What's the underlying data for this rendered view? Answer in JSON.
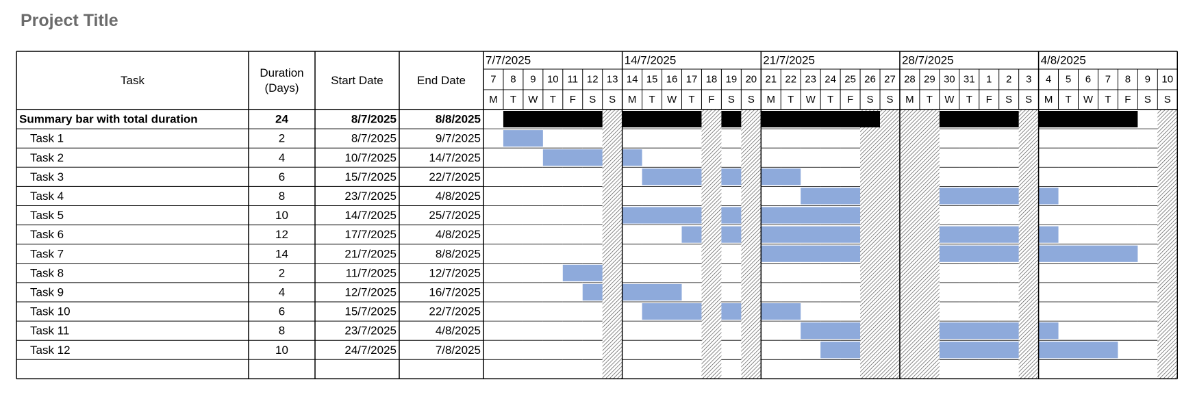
{
  "page": {
    "title": "Project Title"
  },
  "headers": {
    "task": "Task",
    "duration_line1": "Duration",
    "duration_line2": "(Days)",
    "start": "Start Date",
    "end": "End Date"
  },
  "colors": {
    "bar": "#8eaadb",
    "summary": "#000000",
    "grid": "#000000",
    "hatch": "#555555",
    "title": "#6b6b6b"
  },
  "chart_data": {
    "type": "gantt",
    "weeks": [
      "7/7/2025",
      "14/7/2025",
      "21/7/2025",
      "28/7/2025",
      "4/8/2025"
    ],
    "days": [
      {
        "date": "7",
        "dow": "M"
      },
      {
        "date": "8",
        "dow": "T"
      },
      {
        "date": "9",
        "dow": "W"
      },
      {
        "date": "10",
        "dow": "T"
      },
      {
        "date": "11",
        "dow": "F"
      },
      {
        "date": "12",
        "dow": "S"
      },
      {
        "date": "13",
        "dow": "S"
      },
      {
        "date": "14",
        "dow": "M"
      },
      {
        "date": "15",
        "dow": "T"
      },
      {
        "date": "16",
        "dow": "W"
      },
      {
        "date": "17",
        "dow": "T"
      },
      {
        "date": "18",
        "dow": "F"
      },
      {
        "date": "19",
        "dow": "S"
      },
      {
        "date": "20",
        "dow": "S"
      },
      {
        "date": "21",
        "dow": "M"
      },
      {
        "date": "22",
        "dow": "T"
      },
      {
        "date": "23",
        "dow": "W"
      },
      {
        "date": "24",
        "dow": "T"
      },
      {
        "date": "25",
        "dow": "F"
      },
      {
        "date": "26",
        "dow": "S"
      },
      {
        "date": "27",
        "dow": "S"
      },
      {
        "date": "28",
        "dow": "M"
      },
      {
        "date": "29",
        "dow": "T"
      },
      {
        "date": "30",
        "dow": "W"
      },
      {
        "date": "31",
        "dow": "T"
      },
      {
        "date": "1",
        "dow": "F"
      },
      {
        "date": "2",
        "dow": "S"
      },
      {
        "date": "3",
        "dow": "S"
      },
      {
        "date": "4",
        "dow": "M"
      },
      {
        "date": "5",
        "dow": "T"
      },
      {
        "date": "6",
        "dow": "W"
      },
      {
        "date": "7",
        "dow": "T"
      },
      {
        "date": "8",
        "dow": "F"
      },
      {
        "date": "9",
        "dow": "S"
      },
      {
        "date": "10",
        "dow": "S"
      }
    ],
    "hatched_days": [
      "13/7/2025",
      "18/7/2025",
      "20/7/2025",
      "26/7/2025",
      "27/7/2025",
      "28/7/2025",
      "29/7/2025",
      "3/8/2025",
      "10/8/2025"
    ],
    "summary": {
      "name": "Summary bar with total duration",
      "duration": "24",
      "start": "8/7/2025",
      "end": "8/8/2025",
      "segments": [
        [
          "8/7/2025",
          "12/7/2025"
        ],
        [
          "14/7/2025",
          "17/7/2025"
        ],
        [
          "19/7/2025",
          "19/7/2025"
        ],
        [
          "21/7/2025",
          "26/7/2025"
        ],
        [
          "30/7/2025",
          "2/8/2025"
        ],
        [
          "4/8/2025",
          "8/8/2025"
        ]
      ]
    },
    "tasks": [
      {
        "name": "Task 1",
        "duration": "2",
        "start": "8/7/2025",
        "end": "9/7/2025"
      },
      {
        "name": "Task 2",
        "duration": "4",
        "start": "10/7/2025",
        "end": "14/7/2025"
      },
      {
        "name": "Task 3",
        "duration": "6",
        "start": "15/7/2025",
        "end": "22/7/2025"
      },
      {
        "name": "Task 4",
        "duration": "8",
        "start": "23/7/2025",
        "end": "4/8/2025"
      },
      {
        "name": "Task 5",
        "duration": "10",
        "start": "14/7/2025",
        "end": "25/7/2025"
      },
      {
        "name": "Task 6",
        "duration": "12",
        "start": "17/7/2025",
        "end": "4/8/2025"
      },
      {
        "name": "Task 7",
        "duration": "14",
        "start": "21/7/2025",
        "end": "8/8/2025"
      },
      {
        "name": "Task 8",
        "duration": "2",
        "start": "11/7/2025",
        "end": "12/7/2025"
      },
      {
        "name": "Task 9",
        "duration": "4",
        "start": "12/7/2025",
        "end": "16/7/2025"
      },
      {
        "name": "Task 10",
        "duration": "6",
        "start": "15/7/2025",
        "end": "22/7/2025"
      },
      {
        "name": "Task 11",
        "duration": "8",
        "start": "23/7/2025",
        "end": "4/8/2025"
      },
      {
        "name": "Task 12",
        "duration": "10",
        "start": "24/7/2025",
        "end": "7/8/2025"
      }
    ]
  }
}
